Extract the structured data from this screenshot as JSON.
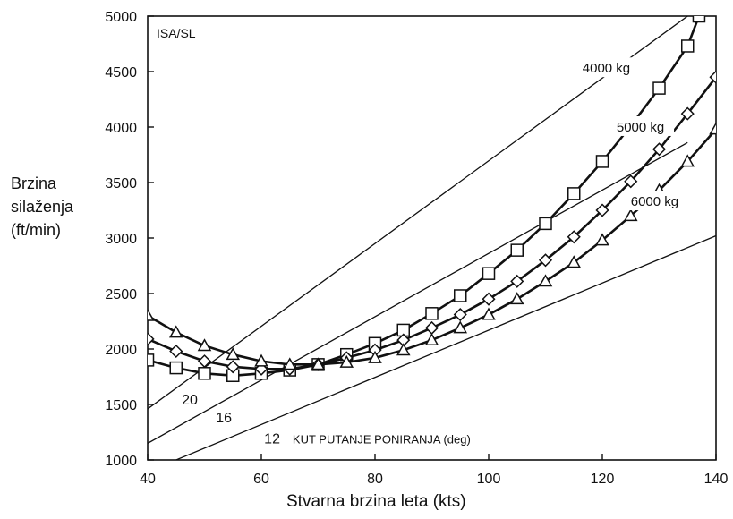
{
  "chart_data": {
    "type": "line",
    "title": "",
    "corner_label": "ISA/SL",
    "xlabel": "Stvarna brzina leta (kts)",
    "ylabel_lines": [
      "Brzina",
      "silaženja",
      "(ft/min)"
    ],
    "xlim": [
      40,
      140
    ],
    "ylim": [
      1000,
      5000
    ],
    "xticks": [
      "40",
      "60",
      "80",
      "100",
      "120",
      "140"
    ],
    "yticks": [
      "1000",
      "1500",
      "2000",
      "2500",
      "3000",
      "3500",
      "4000",
      "4500",
      "5000"
    ],
    "grid": false,
    "series": [
      {
        "name": "4000 kg",
        "marker": "square",
        "x": [
          40,
          45,
          50,
          55,
          60,
          65,
          70,
          75,
          80,
          85,
          90,
          95,
          100,
          105,
          110,
          115,
          120,
          125,
          130,
          135,
          137
        ],
        "y": [
          1900,
          1830,
          1780,
          1760,
          1780,
          1810,
          1860,
          1950,
          2050,
          2170,
          2320,
          2480,
          2680,
          2890,
          3130,
          3400,
          3690,
          4010,
          4350,
          4730,
          5000
        ]
      },
      {
        "name": "5000 kg",
        "marker": "diamond",
        "x": [
          40,
          45,
          50,
          55,
          60,
          65,
          70,
          75,
          80,
          85,
          90,
          95,
          100,
          105,
          110,
          115,
          120,
          125,
          130,
          135,
          140
        ],
        "y": [
          2090,
          1980,
          1890,
          1840,
          1820,
          1820,
          1860,
          1920,
          1990,
          2080,
          2190,
          2310,
          2450,
          2610,
          2800,
          3010,
          3250,
          3510,
          3800,
          4120,
          4450
        ]
      },
      {
        "name": "6000 kg",
        "marker": "triangle",
        "x": [
          40,
          45,
          50,
          55,
          60,
          65,
          70,
          75,
          80,
          85,
          90,
          95,
          100,
          105,
          110,
          115,
          120,
          125,
          130,
          135,
          140
        ],
        "y": [
          2300,
          2150,
          2030,
          1950,
          1890,
          1860,
          1860,
          1880,
          1920,
          1990,
          2080,
          2190,
          2310,
          2450,
          2610,
          2780,
          2980,
          3200,
          3430,
          3690,
          3980
        ]
      }
    ],
    "reference_lines": {
      "label": "KUT PUTANJE PONIRANJA (deg)",
      "lines": [
        {
          "angle": "20",
          "from": [
            40,
            1460
          ],
          "to": [
            135,
            5000
          ]
        },
        {
          "angle": "16",
          "from": [
            40,
            1150
          ],
          "to": [
            135,
            3860
          ]
        },
        {
          "angle": "12",
          "from": [
            45,
            1000
          ],
          "to": [
            140,
            3020
          ]
        }
      ]
    }
  }
}
